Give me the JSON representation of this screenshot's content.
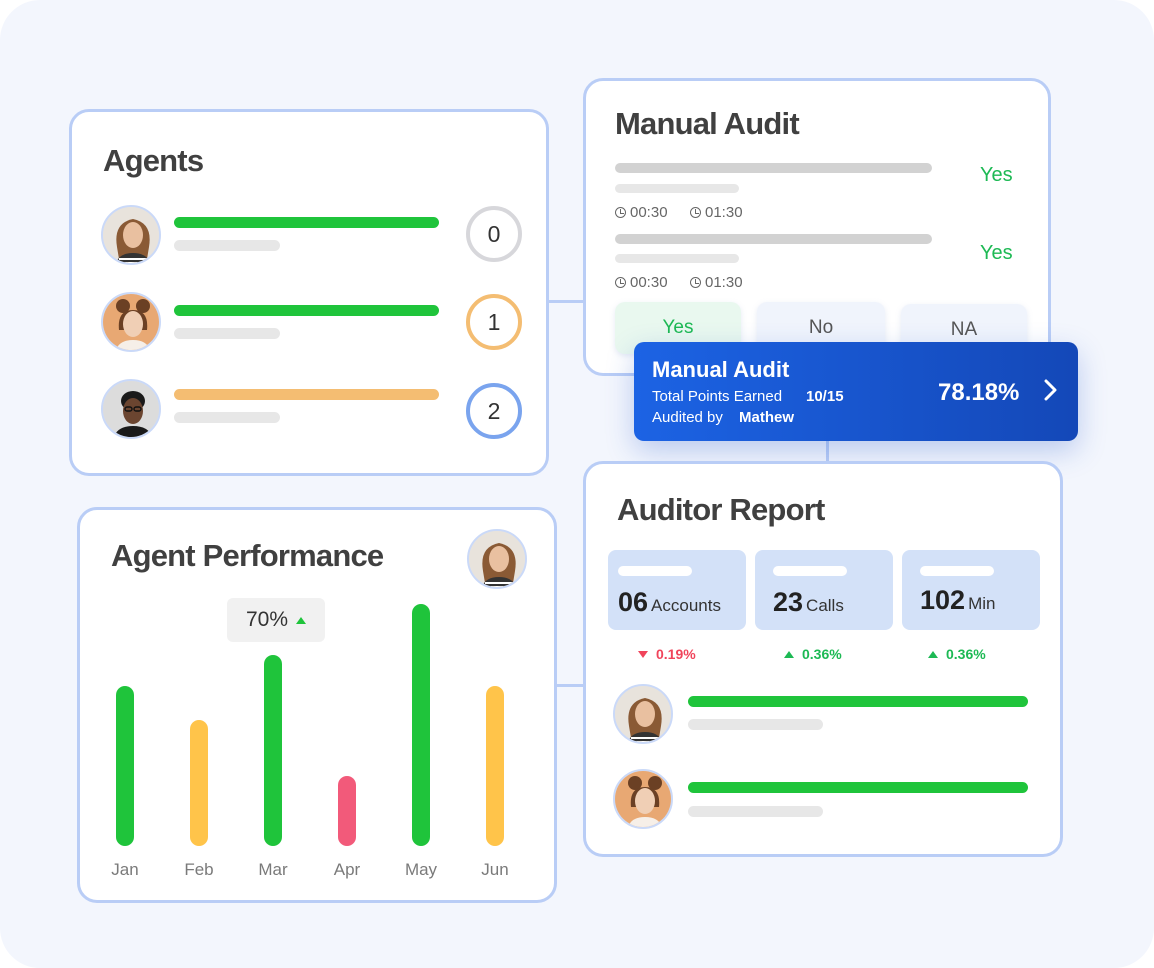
{
  "colors": {
    "accent": "#1c63e4",
    "good": "#1fc43b",
    "warn": "#f4bd72",
    "bad": "#f25a7a",
    "border": "#b9cdf6"
  },
  "agents": {
    "title": "Agents",
    "rows": [
      {
        "rank": "0",
        "status": "green"
      },
      {
        "rank": "1",
        "status": "green"
      },
      {
        "rank": "2",
        "status": "orange"
      }
    ]
  },
  "manual_audit": {
    "title": "Manual Audit",
    "items": [
      {
        "answer": "Yes",
        "time_start": "00:30",
        "time_end": "01:30"
      },
      {
        "answer": "Yes",
        "time_start": "00:30",
        "time_end": "01:30"
      }
    ],
    "options": [
      "Yes",
      "No",
      "NA"
    ],
    "selected_option": "Yes"
  },
  "banner": {
    "title": "Manual Audit",
    "points_label": "Total Points Earned",
    "points_value": "10/15",
    "audited_label": "Audited by",
    "auditor": "Mathew",
    "score": "78.18%",
    "chevron_icon": "chevron-right-icon"
  },
  "performance": {
    "title": "Agent Performance",
    "tooltip": "70%"
  },
  "chart_data": {
    "type": "bar",
    "categories": [
      "Jan",
      "Feb",
      "Mar",
      "Apr",
      "May",
      "Jun"
    ],
    "values": [
      66,
      52,
      79,
      29,
      100,
      66
    ],
    "colors": [
      "#1fc43b",
      "#ffc44a",
      "#1fc43b",
      "#f25a7a",
      "#1fc43b",
      "#ffc44a"
    ],
    "ylim": [
      0,
      100
    ],
    "grid": false
  },
  "auditor_report": {
    "title": "Auditor Report",
    "stats": [
      {
        "value": "06",
        "unit": "Accounts",
        "delta": "0.19%",
        "direction": "down"
      },
      {
        "value": "23",
        "unit": "Calls",
        "delta": "0.36%",
        "direction": "up"
      },
      {
        "value": "102",
        "unit": "Min",
        "delta": "0.36%",
        "direction": "up"
      }
    ]
  }
}
